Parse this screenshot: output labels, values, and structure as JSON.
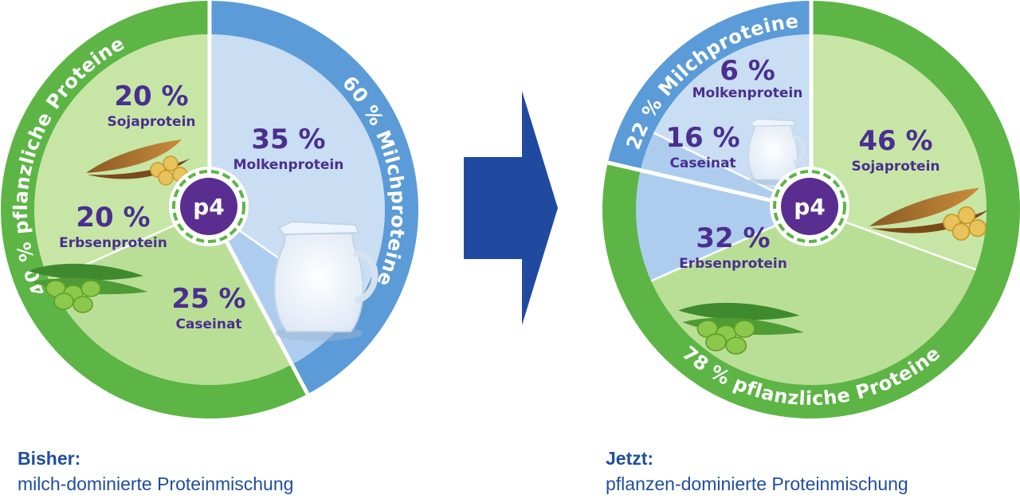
{
  "chart_data": [
    {
      "type": "pie",
      "caption_title": "Bisher:",
      "caption_subtitle": "milch-dominierte Proteinmischung",
      "logo_label": "p4",
      "groups": [
        {
          "label": "60 % Milchproteine",
          "value": 60,
          "color": "#5b9bd8"
        },
        {
          "label": "40 % pflanzliche Proteine",
          "value": 40,
          "color": "#5cb545"
        }
      ],
      "slices": [
        {
          "pct": "35 %",
          "name": "Molkenprotein",
          "value": 35,
          "group": "Milchproteine",
          "color": "#c9ddf3"
        },
        {
          "pct": "25 %",
          "name": "Caseinat",
          "value": 25,
          "group": "Milchproteine",
          "color": "#aecdee"
        },
        {
          "pct": "20 %",
          "name": "Erbsenprotein",
          "value": 20,
          "group": "pflanzliche Proteine",
          "color": "#b9df96"
        },
        {
          "pct": "20 %",
          "name": "Sojaprotein",
          "value": 20,
          "group": "pflanzliche Proteine",
          "color": "#c7e6a6"
        }
      ]
    },
    {
      "type": "pie",
      "caption_title": "Jetzt:",
      "caption_subtitle": "pflanzen-dominierte Proteinmischung",
      "logo_label": "p4",
      "groups": [
        {
          "label": "78 % pflanzliche Proteine",
          "value": 78,
          "color": "#5cb545"
        },
        {
          "label": "22 % Milchproteine",
          "value": 22,
          "color": "#5b9bd8"
        }
      ],
      "slices": [
        {
          "pct": "46 %",
          "name": "Sojaprotein",
          "value": 46,
          "group": "pflanzliche Proteine",
          "color": "#c7e6a6"
        },
        {
          "pct": "32 %",
          "name": "Erbsenprotein",
          "value": 32,
          "group": "pflanzliche Proteine",
          "color": "#b9df96"
        },
        {
          "pct": "16 %",
          "name": "Caseinat",
          "value": 16,
          "group": "Milchproteine",
          "color": "#aecdee"
        },
        {
          "pct": "6 %",
          "name": "Molkenprotein",
          "value": 6,
          "group": "Milchproteine",
          "color": "#c9ddf3"
        }
      ]
    }
  ],
  "arrow_color": "#1f4aa0",
  "text_color": "#4a2f8f",
  "caption_color": "#1f4e9c"
}
